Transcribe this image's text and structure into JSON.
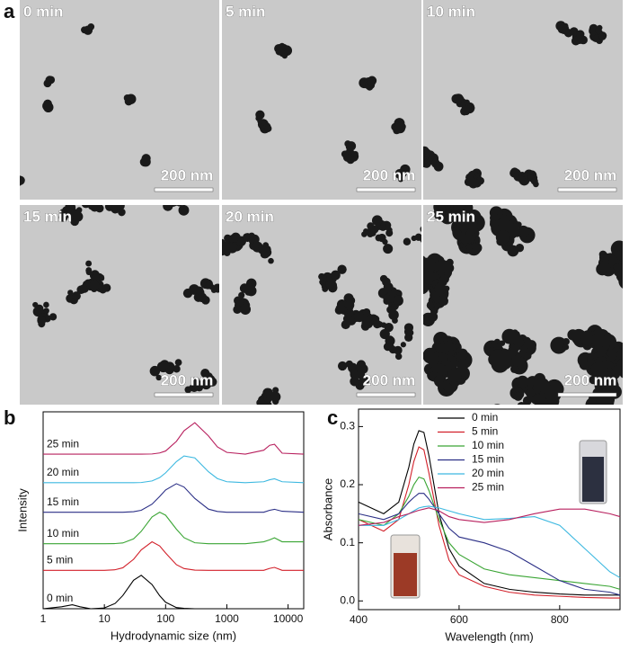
{
  "figure_labels": [
    "a",
    "b",
    "c"
  ],
  "micrographs": [
    {
      "time": "0 min",
      "scale_bar": "200 nm"
    },
    {
      "time": "5 min",
      "scale_bar": "200 nm"
    },
    {
      "time": "10 min",
      "scale_bar": "200 nm"
    },
    {
      "time": "15 min",
      "scale_bar": "200 nm"
    },
    {
      "time": "20 min",
      "scale_bar": "200 nm"
    },
    {
      "time": "25 min",
      "scale_bar": "200 nm"
    }
  ],
  "chart_data": [
    {
      "type": "line",
      "x_label": "Hydrodynamic size (nm)",
      "y_label": "Intensity",
      "x_scale": "log",
      "xlim": [
        1,
        18000
      ],
      "xticks": [
        1,
        10,
        100,
        1000,
        10000
      ],
      "ylim": [
        0,
        100
      ],
      "legend": "curve labels",
      "x": [
        1,
        2,
        3,
        4,
        6,
        10,
        15,
        20,
        30,
        40,
        60,
        80,
        100,
        150,
        200,
        300,
        500,
        700,
        1000,
        2000,
        4000,
        5000,
        6000,
        8000,
        18000
      ],
      "series": [
        {
          "name": "0 min",
          "color": "#000000",
          "values": [
            0,
            1,
            2,
            1,
            0,
            0.4,
            2.7,
            6.7,
            14.5,
            17,
            12.3,
            6.6,
            3.3,
            0.6,
            0.2,
            0,
            0,
            0,
            0,
            0,
            0,
            0,
            0,
            0,
            0
          ]
        },
        {
          "name": "5 min",
          "color": "#d2202a",
          "values": [
            19.5,
            19.5,
            19.5,
            19.5,
            19.5,
            19.5,
            19.8,
            20.8,
            25.1,
            29.9,
            34,
            31.9,
            28.3,
            22.4,
            20.4,
            19.6,
            19.5,
            19.5,
            19.5,
            19.5,
            19.5,
            20.5,
            21,
            19.5,
            19.5
          ]
        },
        {
          "name": "10 min",
          "color": "#3aa534",
          "values": [
            33,
            33,
            33,
            33,
            33,
            33,
            33.1,
            33.4,
            35.5,
            39.3,
            46.6,
            49,
            47.5,
            40.4,
            36.1,
            33.5,
            33,
            33,
            33,
            33,
            34,
            35,
            36,
            34,
            34
          ]
        },
        {
          "name": "15 min",
          "color": "#2b2f86",
          "values": [
            49,
            49,
            49,
            49,
            49,
            49,
            49,
            49,
            49.3,
            50,
            53.1,
            57,
            60.3,
            63.5,
            61.8,
            56,
            50.6,
            49.4,
            49,
            49,
            49,
            50,
            50.5,
            49.5,
            49
          ]
        },
        {
          "name": "20 min",
          "color": "#3cb8e0",
          "values": [
            64,
            64,
            64,
            64,
            64,
            64,
            64,
            64,
            64,
            64.1,
            64.9,
            66.6,
            69,
            74.7,
            77.6,
            76.6,
            69.6,
            66.1,
            64.5,
            64,
            64.5,
            65.5,
            66,
            64.5,
            64
          ]
        },
        {
          "name": "25 min",
          "color": "#b8205e",
          "values": [
            78.5,
            78.5,
            78.5,
            78.5,
            78.5,
            78.5,
            78.5,
            78.5,
            78.5,
            78.5,
            78.6,
            79.1,
            80.1,
            85,
            90.4,
            94.5,
            87.8,
            82.2,
            79.4,
            78.5,
            80.5,
            83,
            83.5,
            79,
            78.5
          ]
        }
      ]
    },
    {
      "type": "line",
      "x_label": "Wavelength (nm)",
      "y_label": "Absorbance",
      "xlim": [
        400,
        920
      ],
      "xticks": [
        400,
        600,
        800
      ],
      "ylim": [
        -0.015,
        0.33
      ],
      "yticks": [
        {
          "value": 0,
          "label": "0.0"
        },
        0.1,
        0.2,
        0.3
      ],
      "legend": "upper center",
      "x": [
        400,
        450,
        480,
        500,
        510,
        520,
        530,
        540,
        560,
        580,
        600,
        650,
        700,
        750,
        800,
        850,
        900,
        920
      ],
      "series": [
        {
          "name": "0 min",
          "color": "#000000",
          "values": [
            0.17,
            0.15,
            0.17,
            0.23,
            0.27,
            0.293,
            0.29,
            0.25,
            0.15,
            0.09,
            0.06,
            0.03,
            0.02,
            0.015,
            0.012,
            0.01,
            0.01,
            0.01
          ]
        },
        {
          "name": "5 min",
          "color": "#d2202a",
          "values": [
            0.14,
            0.12,
            0.14,
            0.2,
            0.24,
            0.265,
            0.26,
            0.22,
            0.13,
            0.07,
            0.045,
            0.025,
            0.015,
            0.01,
            0.008,
            0.006,
            0.005,
            0.005
          ]
        },
        {
          "name": "10 min",
          "color": "#3aa534",
          "values": [
            0.14,
            0.13,
            0.15,
            0.18,
            0.2,
            0.213,
            0.21,
            0.19,
            0.14,
            0.1,
            0.08,
            0.055,
            0.045,
            0.04,
            0.035,
            0.03,
            0.025,
            0.02
          ]
        },
        {
          "name": "15 min",
          "color": "#2b2f86",
          "values": [
            0.15,
            0.14,
            0.15,
            0.17,
            0.178,
            0.185,
            0.185,
            0.175,
            0.15,
            0.125,
            0.11,
            0.1,
            0.085,
            0.06,
            0.035,
            0.02,
            0.015,
            0.01
          ]
        },
        {
          "name": "20 min",
          "color": "#3cb8e0",
          "values": [
            0.13,
            0.13,
            0.14,
            0.15,
            0.155,
            0.16,
            0.162,
            0.163,
            0.16,
            0.155,
            0.15,
            0.14,
            0.142,
            0.145,
            0.13,
            0.09,
            0.05,
            0.04
          ]
        },
        {
          "name": "25 min",
          "color": "#b8205e",
          "values": [
            0.13,
            0.135,
            0.145,
            0.15,
            0.153,
            0.156,
            0.158,
            0.16,
            0.155,
            0.145,
            0.14,
            0.135,
            0.14,
            0.15,
            0.158,
            0.158,
            0.15,
            0.145
          ]
        }
      ]
    }
  ]
}
